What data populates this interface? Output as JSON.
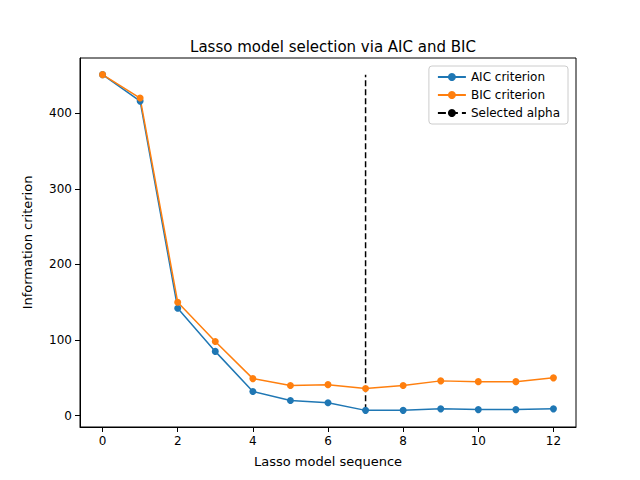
{
  "chart_data": {
    "type": "line",
    "title": "Lasso model selection via AIC and BIC",
    "x_label": "Lasso model sequence",
    "y_label": "Information criterion",
    "x": [
      0,
      1,
      2,
      3,
      4,
      5,
      6,
      7,
      8,
      9,
      10,
      11,
      12
    ],
    "series": [
      {
        "name": "AIC criterion",
        "color": "#1f77b4",
        "marker": "circle",
        "line_style": "solid",
        "values": [
          451,
          416,
          142,
          85,
          32,
          20,
          17,
          7,
          7,
          9,
          8,
          8,
          9
        ]
      },
      {
        "name": "BIC criterion",
        "color": "#ff7f0e",
        "marker": "circle",
        "line_style": "solid",
        "values": [
          451,
          420,
          150,
          98,
          49,
          40,
          41,
          36,
          40,
          46,
          45,
          45,
          50
        ]
      }
    ],
    "vlines": [
      {
        "label": "Selected alpha",
        "x": 7,
        "ymin": 7,
        "ymax": 451,
        "color": "#000000",
        "line_style": "dashed"
      }
    ],
    "xlim": [
      -0.6,
      12.6
    ],
    "xticks": [
      0,
      2,
      4,
      6,
      8,
      10,
      12
    ],
    "ylim": [
      -15,
      473
    ],
    "yticks": [
      0,
      100,
      200,
      300,
      400
    ],
    "grid": false,
    "legend": "upper right"
  }
}
